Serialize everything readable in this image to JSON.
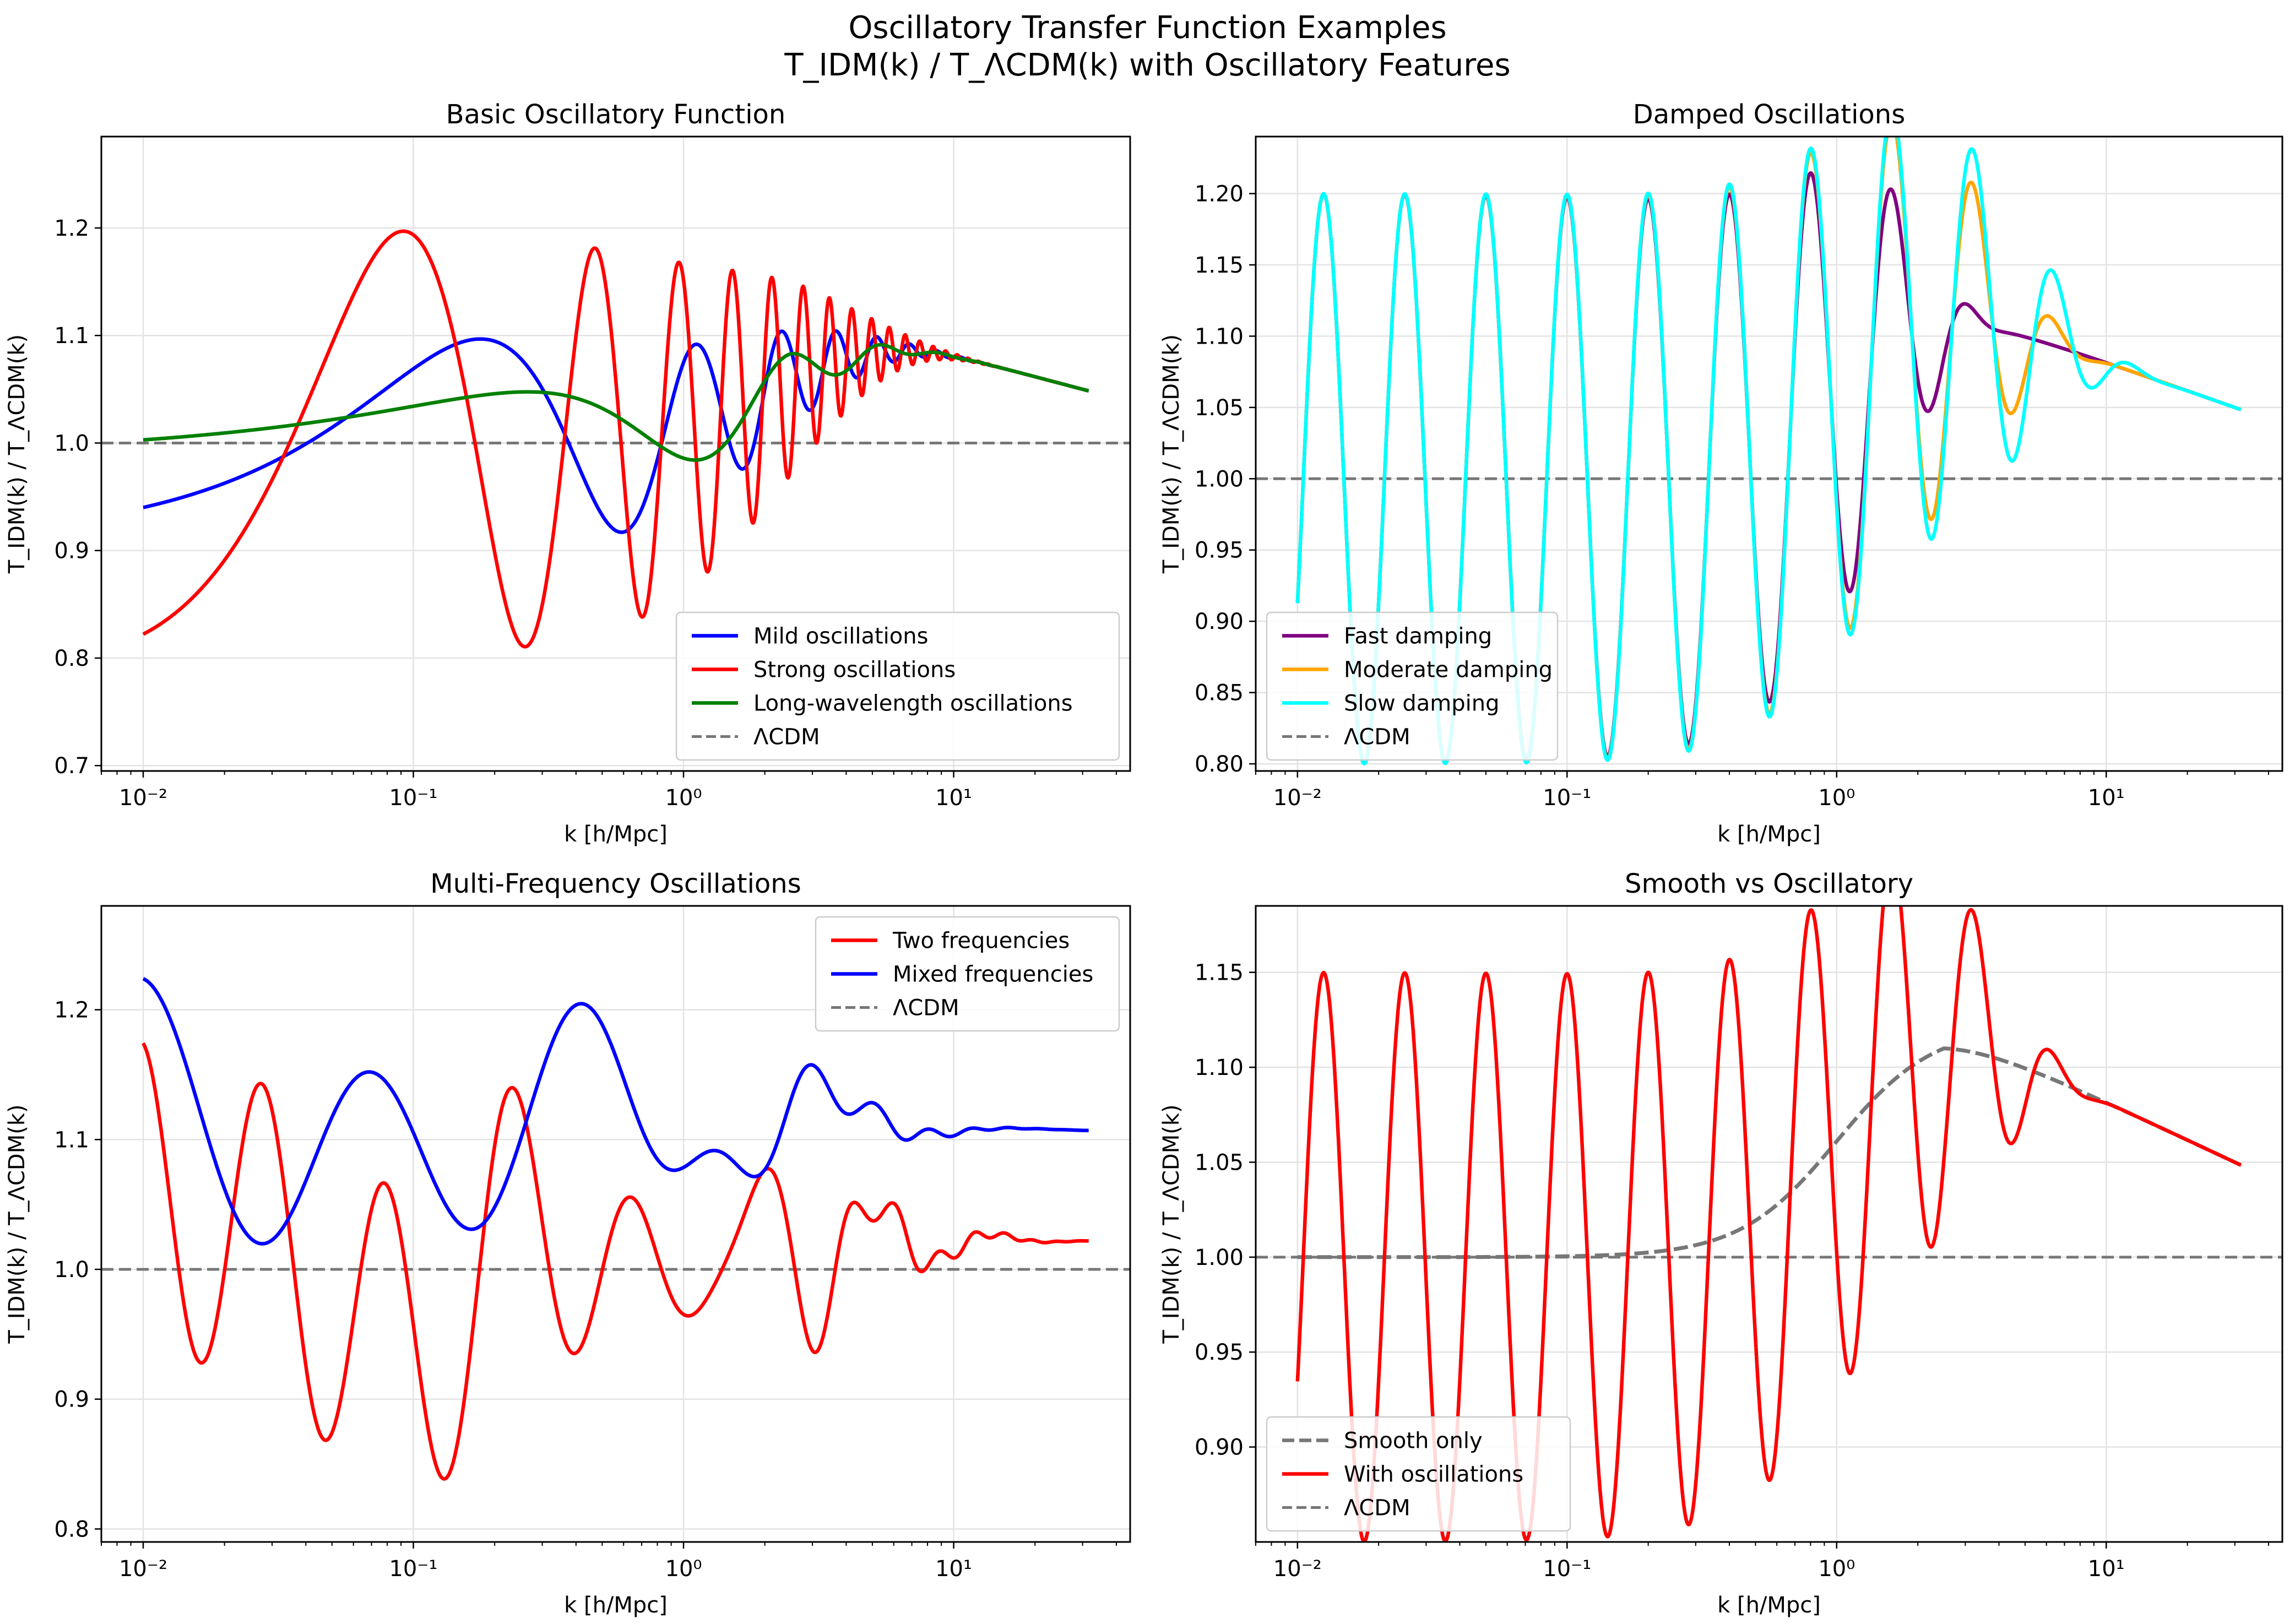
{
  "figure": {
    "title_line1": "Oscillatory Transfer Function Examples",
    "title_line2": "T_IDM(k) / T_ΛCDM(k) with Oscillatory Features"
  },
  "chart_data": [
    {
      "type": "line",
      "title": "Basic Oscillatory Function",
      "xlabel": "k [h/Mpc]",
      "ylabel": "T_IDM(k) / T_ΛCDM(k)",
      "xscale": "log",
      "xlim": [
        0.007,
        45
      ],
      "ylim": [
        0.695,
        1.285
      ],
      "xticks": [
        0.01,
        0.1,
        1,
        10
      ],
      "yticks": [
        0.7,
        0.8,
        0.9,
        1.0,
        1.1,
        1.2
      ],
      "grid": true,
      "legend_position": "lower right",
      "reference": {
        "name": "ΛCDM",
        "y": 1.0,
        "color": "#777777",
        "style": "dashed"
      },
      "series": [
        {
          "name": "Mild oscillations",
          "color": "#0000ff",
          "model": "osc",
          "params": {
            "A": 0.1,
            "r": 6.28,
            "phi": -2.83,
            "s": 0.5
          }
        },
        {
          "name": "Strong oscillations",
          "color": "#ff0000",
          "model": "osc",
          "params": {
            "A": 0.2,
            "r": 12.57,
            "phi": -3.9,
            "s": 0.7
          }
        },
        {
          "name": "Long-wavelength oscillations",
          "color": "#008000",
          "model": "osc",
          "params": {
            "A": 0.05,
            "r": 3.14,
            "phi": -1.82,
            "s": 0.5
          }
        }
      ]
    },
    {
      "type": "line",
      "title": "Damped Oscillations",
      "xlabel": "k [h/Mpc]",
      "ylabel": "T_IDM(k) / T_ΛCDM(k)",
      "xscale": "log",
      "xlim": [
        0.007,
        45
      ],
      "ylim": [
        0.795,
        1.24
      ],
      "xticks": [
        0.01,
        0.1,
        1,
        10
      ],
      "yticks": [
        0.8,
        0.85,
        0.9,
        0.95,
        1.0,
        1.05,
        1.1,
        1.15,
        1.2
      ],
      "grid": true,
      "legend_position": "lower left",
      "reference": {
        "name": "ΛCDM",
        "y": 1.0,
        "color": "#777777",
        "style": "dashed"
      },
      "series": [
        {
          "name": "Fast damping",
          "color": "#800080",
          "model": "damp",
          "params": {
            "A": 0.2,
            "d": 1.0
          }
        },
        {
          "name": "Moderate damping",
          "color": "#ffa500",
          "model": "damp",
          "params": {
            "A": 0.2,
            "d": 0.5
          }
        },
        {
          "name": "Slow damping",
          "color": "#00ffff",
          "model": "damp",
          "params": {
            "A": 0.2,
            "d": 0.2
          }
        }
      ]
    },
    {
      "type": "line",
      "title": "Multi-Frequency Oscillations",
      "xlabel": "k [h/Mpc]",
      "ylabel": "T_IDM(k) / T_ΛCDM(k)",
      "xscale": "log",
      "xlim": [
        0.007,
        45
      ],
      "ylim": [
        0.79,
        1.28
      ],
      "xticks": [
        0.01,
        0.1,
        1,
        10
      ],
      "yticks": [
        0.8,
        0.9,
        1.0,
        1.1,
        1.2
      ],
      "grid": true,
      "legend_position": "upper right",
      "reference": {
        "name": "ΛCDM",
        "y": 1.0,
        "color": "#777777",
        "style": "dashed"
      },
      "series": [
        {
          "name": "Two frequencies",
          "color": "#ff0000",
          "model": "multi_a"
        },
        {
          "name": "Mixed frequencies",
          "color": "#0000ff",
          "model": "multi_b"
        }
      ]
    },
    {
      "type": "line",
      "title": "Smooth vs Oscillatory",
      "xlabel": "k [h/Mpc]",
      "ylabel": "T_IDM(k) / T_ΛCDM(k)",
      "xscale": "log",
      "xlim": [
        0.007,
        45
      ],
      "ylim": [
        0.85,
        1.185
      ],
      "xticks": [
        0.01,
        0.1,
        1,
        10
      ],
      "yticks": [
        0.9,
        0.95,
        1.0,
        1.05,
        1.1,
        1.15
      ],
      "grid": true,
      "legend_position": "lower left",
      "reference": {
        "name": "ΛCDM",
        "y": 1.0,
        "color": "#777777",
        "style": "dashed"
      },
      "series": [
        {
          "name": "Smooth only",
          "color": "#777777",
          "style": "dashed",
          "model": "smooth"
        },
        {
          "name": "With oscillations",
          "color": "#ff0000",
          "model": "damp",
          "params": {
            "A": 0.15,
            "d": 0.5
          }
        }
      ]
    }
  ]
}
